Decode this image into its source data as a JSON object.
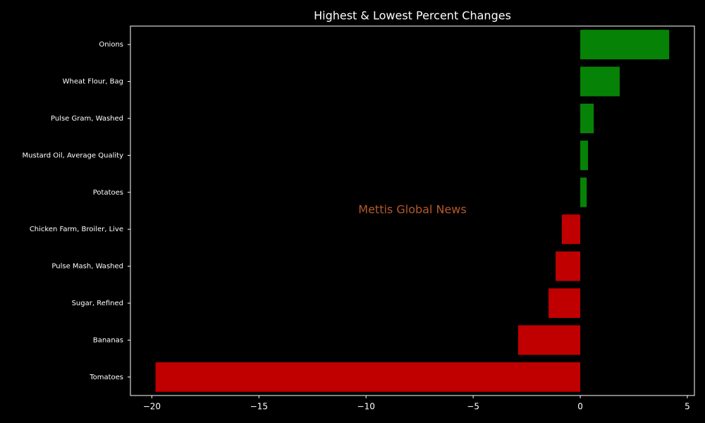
{
  "chart_data": {
    "type": "barh",
    "title": "Highest & Lowest Percent Changes",
    "annotation": "Mettis Global News",
    "categories": [
      "Onions",
      "Wheat Flour, Bag",
      "Pulse Gram, Washed",
      "Mustard Oil, Average Quality",
      "Potatoes",
      "Chicken Farm, Broiler, Live",
      "Pulse Mash, Washed",
      "Sugar, Refined",
      "Bananas",
      "Tomatoes"
    ],
    "values": [
      4.15,
      1.84,
      0.63,
      0.36,
      0.3,
      -0.86,
      -1.15,
      -1.48,
      -2.9,
      -19.83
    ],
    "colors": [
      "#068306",
      "#068306",
      "#068306",
      "#068306",
      "#068306",
      "#c00000",
      "#c00000",
      "#c00000",
      "#c00000",
      "#c00000"
    ],
    "xlim": [
      -21.0,
      5.33
    ],
    "xticks": [
      {
        "value": -20,
        "label": "−20"
      },
      {
        "value": -15,
        "label": "−15"
      },
      {
        "value": -10,
        "label": "−10"
      },
      {
        "value": -5,
        "label": "−5"
      },
      0,
      5
    ]
  }
}
